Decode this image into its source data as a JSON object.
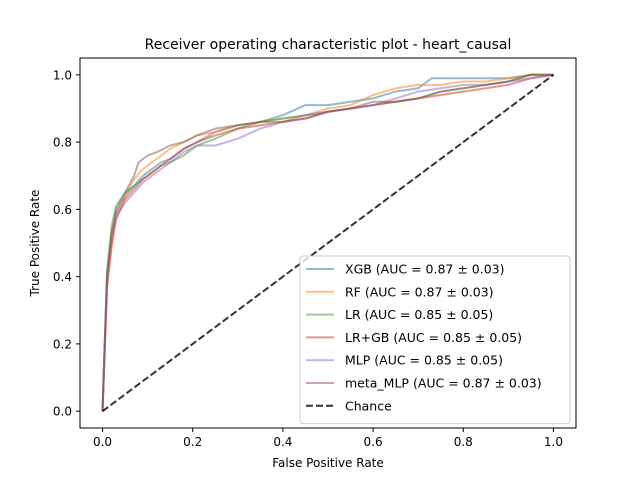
{
  "chart_data": {
    "type": "line",
    "title": "Receiver operating characteristic plot - heart_causal",
    "xlabel": "False Positive Rate",
    "ylabel": "True Positive Rate",
    "xlim": [
      -0.05,
      1.05
    ],
    "ylim": [
      -0.05,
      1.05
    ],
    "xticks": [
      "0.0",
      "0.2",
      "0.4",
      "0.6",
      "0.8",
      "1.0"
    ],
    "yticks": [
      "0.0",
      "0.2",
      "0.4",
      "0.6",
      "0.8",
      "1.0"
    ],
    "grid": false,
    "legend_position": "lower-right",
    "series": [
      {
        "name": "XGB (AUC = 0.87 ± 0.03)",
        "color": "#1f77b4",
        "x": [
          0,
          0.01,
          0.02,
          0.03,
          0.05,
          0.07,
          0.09,
          0.11,
          0.13,
          0.15,
          0.18,
          0.21,
          0.25,
          0.3,
          0.35,
          0.4,
          0.45,
          0.5,
          0.55,
          0.6,
          0.65,
          0.7,
          0.73,
          0.8,
          0.85,
          0.9,
          0.95,
          1.0
        ],
        "y": [
          0,
          0.4,
          0.52,
          0.59,
          0.64,
          0.67,
          0.7,
          0.72,
          0.74,
          0.75,
          0.78,
          0.8,
          0.83,
          0.85,
          0.86,
          0.88,
          0.91,
          0.91,
          0.92,
          0.93,
          0.95,
          0.96,
          0.99,
          0.99,
          0.99,
          0.99,
          1.0,
          1.0
        ]
      },
      {
        "name": "RF (AUC = 0.87 ± 0.03)",
        "color": "#ff7f0e",
        "x": [
          0,
          0.01,
          0.02,
          0.03,
          0.05,
          0.07,
          0.09,
          0.11,
          0.13,
          0.15,
          0.18,
          0.21,
          0.25,
          0.3,
          0.35,
          0.4,
          0.45,
          0.5,
          0.55,
          0.6,
          0.65,
          0.7,
          0.75,
          0.8,
          0.85,
          0.9,
          0.95,
          1.0
        ],
        "y": [
          0,
          0.38,
          0.5,
          0.58,
          0.64,
          0.69,
          0.72,
          0.74,
          0.76,
          0.78,
          0.8,
          0.82,
          0.83,
          0.85,
          0.86,
          0.87,
          0.88,
          0.9,
          0.91,
          0.94,
          0.96,
          0.97,
          0.97,
          0.98,
          0.98,
          0.99,
          1.0,
          1.0
        ]
      },
      {
        "name": "LR (AUC = 0.85 ± 0.05)",
        "color": "#2ca02c",
        "x": [
          0,
          0.01,
          0.02,
          0.03,
          0.05,
          0.07,
          0.09,
          0.11,
          0.13,
          0.15,
          0.18,
          0.21,
          0.25,
          0.3,
          0.35,
          0.4,
          0.45,
          0.5,
          0.55,
          0.6,
          0.65,
          0.7,
          0.75,
          0.8,
          0.85,
          0.9,
          0.95,
          1.0
        ],
        "y": [
          0,
          0.42,
          0.55,
          0.61,
          0.65,
          0.67,
          0.69,
          0.71,
          0.73,
          0.74,
          0.76,
          0.79,
          0.81,
          0.84,
          0.86,
          0.87,
          0.88,
          0.89,
          0.9,
          0.91,
          0.92,
          0.93,
          0.95,
          0.96,
          0.97,
          0.98,
          1.0,
          1.0
        ]
      },
      {
        "name": "LR+GB (AUC = 0.85 ± 0.05)",
        "color": "#d62728",
        "x": [
          0,
          0.01,
          0.02,
          0.03,
          0.05,
          0.07,
          0.09,
          0.11,
          0.13,
          0.15,
          0.18,
          0.21,
          0.25,
          0.3,
          0.35,
          0.4,
          0.45,
          0.5,
          0.55,
          0.6,
          0.65,
          0.7,
          0.75,
          0.8,
          0.85,
          0.9,
          0.95,
          1.0
        ],
        "y": [
          0,
          0.37,
          0.49,
          0.57,
          0.63,
          0.66,
          0.69,
          0.71,
          0.73,
          0.75,
          0.78,
          0.8,
          0.82,
          0.84,
          0.85,
          0.86,
          0.87,
          0.89,
          0.9,
          0.91,
          0.92,
          0.93,
          0.94,
          0.95,
          0.96,
          0.97,
          0.99,
          1.0
        ]
      },
      {
        "name": "MLP (AUC = 0.85 ± 0.05)",
        "color": "#9467bd",
        "x": [
          0,
          0.01,
          0.02,
          0.03,
          0.05,
          0.07,
          0.09,
          0.11,
          0.13,
          0.15,
          0.18,
          0.21,
          0.25,
          0.3,
          0.35,
          0.4,
          0.45,
          0.5,
          0.55,
          0.6,
          0.65,
          0.7,
          0.75,
          0.8,
          0.85,
          0.9,
          0.95,
          1.0
        ],
        "y": [
          0,
          0.4,
          0.52,
          0.58,
          0.62,
          0.65,
          0.68,
          0.7,
          0.72,
          0.74,
          0.77,
          0.79,
          0.79,
          0.81,
          0.84,
          0.86,
          0.88,
          0.89,
          0.9,
          0.91,
          0.93,
          0.95,
          0.96,
          0.97,
          0.97,
          0.98,
          0.99,
          1.0
        ]
      },
      {
        "name": "meta_MLP (AUC = 0.87 ± 0.03)",
        "color": "#8c564b",
        "x": [
          0,
          0.01,
          0.02,
          0.03,
          0.05,
          0.07,
          0.08,
          0.1,
          0.12,
          0.15,
          0.18,
          0.21,
          0.25,
          0.3,
          0.35,
          0.4,
          0.45,
          0.5,
          0.55,
          0.6,
          0.65,
          0.7,
          0.75,
          0.8,
          0.85,
          0.9,
          0.95,
          1.0
        ],
        "y": [
          0,
          0.41,
          0.53,
          0.6,
          0.65,
          0.7,
          0.74,
          0.76,
          0.77,
          0.79,
          0.8,
          0.82,
          0.84,
          0.85,
          0.86,
          0.86,
          0.87,
          0.89,
          0.9,
          0.92,
          0.92,
          0.93,
          0.95,
          0.96,
          0.97,
          0.98,
          1.0,
          1.0
        ]
      },
      {
        "name": "Chance",
        "color": "#000000",
        "dashed": true,
        "x": [
          0,
          1
        ],
        "y": [
          0,
          1
        ]
      }
    ]
  }
}
